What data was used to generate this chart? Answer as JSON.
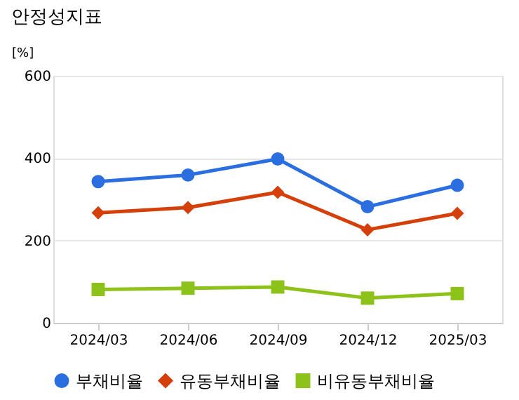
{
  "chart_data": {
    "type": "line",
    "title": "안정성지표",
    "ylabel": "[%]",
    "categories": [
      "2024/03",
      "2024/06",
      "2024/09",
      "2024/12",
      "2025/03"
    ],
    "series": [
      {
        "name": "부채비율",
        "color": "#2a6ee0",
        "marker": "circle",
        "values": [
          343,
          359,
          398,
          282,
          334
        ]
      },
      {
        "name": "유동부채비율",
        "color": "#d43f0a",
        "marker": "diamond",
        "values": [
          267,
          280,
          317,
          226,
          266
        ]
      },
      {
        "name": "비유동부채비율",
        "color": "#8cc21a",
        "marker": "square",
        "values": [
          81,
          84,
          87,
          60,
          71
        ]
      }
    ],
    "ylim": [
      0,
      600
    ],
    "yticks": [
      0,
      200,
      400,
      600
    ],
    "grid": "y",
    "legend": "bottom",
    "line_style": "solid"
  }
}
